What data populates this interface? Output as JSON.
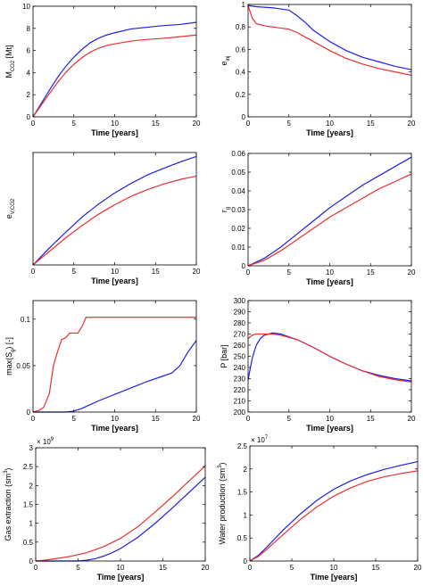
{
  "colors": {
    "series_a": "#2020e0",
    "series_b": "#e83030",
    "axis": "#000000"
  },
  "chart_data": [
    {
      "type": "line",
      "xlabel": "Time [years]",
      "ylabel_main": "M",
      "ylabel_sub": "CO2",
      "ylabel_tail": " [Mt]",
      "xlim": [
        0,
        20
      ],
      "ylim": [
        0,
        10
      ],
      "xticks": [
        0,
        5,
        10,
        15,
        20
      ],
      "yticks": [
        0,
        2,
        4,
        6,
        8,
        10
      ],
      "series": [
        {
          "color": "#2020e0",
          "x": [
            0,
            1,
            2,
            3,
            4,
            5,
            6,
            7,
            8,
            9,
            10,
            12,
            14,
            16,
            18,
            20
          ],
          "y": [
            0,
            1.2,
            2.4,
            3.55,
            4.55,
            5.4,
            6.1,
            6.7,
            7.1,
            7.4,
            7.6,
            7.95,
            8.1,
            8.25,
            8.35,
            8.55
          ]
        },
        {
          "color": "#e83030",
          "x": [
            0,
            1,
            2,
            3,
            4,
            5,
            6,
            7,
            8,
            9,
            10,
            12,
            14,
            16,
            18,
            20
          ],
          "y": [
            0,
            1.05,
            2.1,
            3.1,
            4.0,
            4.75,
            5.35,
            5.85,
            6.2,
            6.45,
            6.6,
            6.85,
            7.0,
            7.1,
            7.25,
            7.4
          ]
        }
      ]
    },
    {
      "type": "line",
      "xlabel": "Time [years]",
      "ylabel_main": "e",
      "ylabel_sub": "inj",
      "ylabel_tail": "",
      "xlim": [
        0,
        20
      ],
      "ylim": [
        0,
        1
      ],
      "xticks": [
        0,
        5,
        10,
        15,
        20
      ],
      "yticks": [
        0,
        0.2,
        0.4,
        0.6,
        0.8,
        1
      ],
      "series": [
        {
          "color": "#2020e0",
          "x": [
            0,
            1,
            2,
            3,
            4,
            5,
            6,
            7,
            8,
            10,
            12,
            14,
            16,
            18,
            20
          ],
          "y": [
            0.99,
            0.98,
            0.975,
            0.97,
            0.96,
            0.95,
            0.9,
            0.84,
            0.77,
            0.67,
            0.59,
            0.53,
            0.49,
            0.45,
            0.42
          ]
        },
        {
          "color": "#e83030",
          "x": [
            0,
            0.5,
            1,
            2,
            3,
            4,
            5,
            6,
            7,
            8,
            10,
            12,
            14,
            16,
            18,
            20
          ],
          "y": [
            0.99,
            0.88,
            0.83,
            0.81,
            0.8,
            0.79,
            0.78,
            0.75,
            0.71,
            0.67,
            0.59,
            0.52,
            0.47,
            0.43,
            0.4,
            0.37
          ]
        }
      ]
    },
    {
      "type": "line",
      "xlabel": "Time [years]",
      "ylabel_main": "e",
      "ylabel_sub": "V,CO2",
      "ylabel_tail": "",
      "xlim": [
        0,
        20
      ],
      "ylim": [
        0,
        0.2
      ],
      "xticks": [
        0,
        5,
        10,
        15,
        20
      ],
      "yticks": [],
      "series": [
        {
          "color": "#2020e0",
          "x": [
            0,
            2,
            4,
            6,
            8,
            10,
            12,
            14,
            16,
            18,
            20
          ],
          "y": [
            0,
            0.03,
            0.058,
            0.085,
            0.108,
            0.128,
            0.145,
            0.16,
            0.172,
            0.183,
            0.193
          ]
        },
        {
          "color": "#e83030",
          "x": [
            0,
            2,
            4,
            6,
            8,
            10,
            12,
            14,
            16,
            18,
            20
          ],
          "y": [
            0,
            0.024,
            0.048,
            0.07,
            0.09,
            0.107,
            0.122,
            0.134,
            0.144,
            0.152,
            0.158
          ]
        }
      ]
    },
    {
      "type": "line",
      "xlabel": "Time [years]",
      "ylabel_main": "r",
      "ylabel_sub": "g",
      "ylabel_tail": "",
      "xlim": [
        0,
        20
      ],
      "ylim": [
        0,
        0.06
      ],
      "xticks": [
        0,
        5,
        10,
        15,
        20
      ],
      "yticks": [
        0,
        0.01,
        0.02,
        0.03,
        0.04,
        0.05,
        0.06
      ],
      "series": [
        {
          "color": "#2020e0",
          "x": [
            0,
            2,
            4,
            6,
            8,
            10,
            12,
            14,
            16,
            18,
            20
          ],
          "y": [
            0,
            0.004,
            0.01,
            0.017,
            0.024,
            0.031,
            0.037,
            0.043,
            0.048,
            0.053,
            0.058
          ]
        },
        {
          "color": "#e83030",
          "x": [
            0,
            2,
            4,
            6,
            8,
            10,
            12,
            14,
            16,
            18,
            20
          ],
          "y": [
            0,
            0.003,
            0.008,
            0.014,
            0.02,
            0.026,
            0.031,
            0.036,
            0.041,
            0.045,
            0.049
          ]
        }
      ]
    },
    {
      "type": "line",
      "xlabel": "Time [years]",
      "ylabel_main": "max(S",
      "ylabel_sub": "g",
      "ylabel_tail": ") [-]",
      "xlim": [
        0,
        20
      ],
      "ylim": [
        0,
        0.12
      ],
      "xticks": [
        0,
        5,
        10,
        15,
        20
      ],
      "yticks": [
        0,
        0.05,
        0.1
      ],
      "series": [
        {
          "color": "#2020e0",
          "x": [
            0,
            3,
            4,
            5,
            6,
            7,
            8,
            10,
            12,
            14,
            16,
            17,
            18,
            19,
            20
          ],
          "y": [
            0,
            0,
            0,
            0.001,
            0.004,
            0.008,
            0.012,
            0.019,
            0.026,
            0.033,
            0.039,
            0.042,
            0.05,
            0.065,
            0.077
          ]
        },
        {
          "color": "#e83030",
          "x": [
            0,
            0.8,
            1.3,
            2,
            2.5,
            3,
            3.5,
            4,
            4.5,
            5,
            5.5,
            6,
            6.5,
            7,
            20
          ],
          "y": [
            0,
            0.002,
            0.005,
            0.02,
            0.05,
            0.065,
            0.078,
            0.08,
            0.085,
            0.085,
            0.085,
            0.092,
            0.102,
            0.102,
            0.102
          ]
        }
      ]
    },
    {
      "type": "line",
      "xlabel": "Time [years]",
      "ylabel_main": "P [bar]",
      "ylabel_sub": "",
      "ylabel_tail": "",
      "xlim": [
        0,
        20
      ],
      "ylim": [
        200,
        300
      ],
      "xticks": [
        0,
        5,
        10,
        15,
        20
      ],
      "yticks": [
        200,
        210,
        220,
        230,
        240,
        250,
        260,
        270,
        280,
        290,
        300
      ],
      "series": [
        {
          "color": "#2020e0",
          "x": [
            0,
            0.5,
            1,
            1.5,
            2,
            3,
            4,
            6,
            8,
            10,
            12,
            14,
            16,
            18,
            20
          ],
          "y": [
            229,
            248,
            260,
            266,
            269,
            271,
            270,
            265,
            258,
            250,
            243,
            237,
            233,
            230,
            228
          ]
        },
        {
          "color": "#e83030",
          "x": [
            0,
            0.5,
            1,
            2,
            3,
            4,
            6,
            8,
            10,
            12,
            14,
            16,
            18,
            20
          ],
          "y": [
            266,
            269,
            270,
            270,
            270,
            269,
            265,
            258,
            250,
            243,
            237,
            232,
            229,
            227
          ]
        }
      ]
    },
    {
      "type": "line",
      "xlabel": "Time [years]",
      "ylabel_main": "Gas extraction (sm",
      "ylabel_sub": "",
      "ylabel_sup": "3",
      "ylabel_tail": ")",
      "multiplier_base": "× 10",
      "multiplier_exp": "9",
      "xlim": [
        0,
        20
      ],
      "ylim": [
        0,
        3
      ],
      "xticks": [
        0,
        5,
        10,
        15,
        20
      ],
      "yticks": [
        0,
        0.5,
        1,
        1.5,
        2,
        2.5,
        3
      ],
      "series": [
        {
          "color": "#2020e0",
          "x": [
            0,
            5,
            6,
            7,
            8,
            9,
            10,
            12,
            14,
            16,
            18,
            20
          ],
          "y": [
            0,
            0,
            0.02,
            0.06,
            0.13,
            0.22,
            0.33,
            0.62,
            0.98,
            1.38,
            1.8,
            2.22
          ]
        },
        {
          "color": "#e83030",
          "x": [
            0,
            1,
            2,
            4,
            6,
            8,
            10,
            12,
            14,
            16,
            18,
            20
          ],
          "y": [
            0,
            0.02,
            0.05,
            0.12,
            0.22,
            0.38,
            0.6,
            0.9,
            1.28,
            1.68,
            2.1,
            2.52
          ]
        }
      ]
    },
    {
      "type": "line",
      "xlabel": "Time [years]",
      "ylabel_main": "Water production (sm",
      "ylabel_sub": "",
      "ylabel_sup": "3",
      "ylabel_tail": ")",
      "multiplier_base": "× 10",
      "multiplier_exp": "7",
      "xlim": [
        0,
        20
      ],
      "ylim": [
        0,
        2.5
      ],
      "xticks": [
        0,
        5,
        10,
        15,
        20
      ],
      "yticks": [
        0,
        0.5,
        1,
        1.5,
        2,
        2.5
      ],
      "series": [
        {
          "color": "#2020e0",
          "x": [
            0,
            1,
            2,
            4,
            6,
            8,
            10,
            12,
            14,
            16,
            18,
            20
          ],
          "y": [
            0,
            0.12,
            0.3,
            0.68,
            1.02,
            1.32,
            1.56,
            1.74,
            1.88,
            1.99,
            2.08,
            2.16
          ]
        },
        {
          "color": "#e83030",
          "x": [
            0,
            1,
            2,
            4,
            6,
            8,
            10,
            12,
            14,
            16,
            18,
            20
          ],
          "y": [
            0,
            0.1,
            0.25,
            0.58,
            0.9,
            1.18,
            1.41,
            1.59,
            1.73,
            1.83,
            1.9,
            1.96
          ]
        }
      ]
    }
  ]
}
